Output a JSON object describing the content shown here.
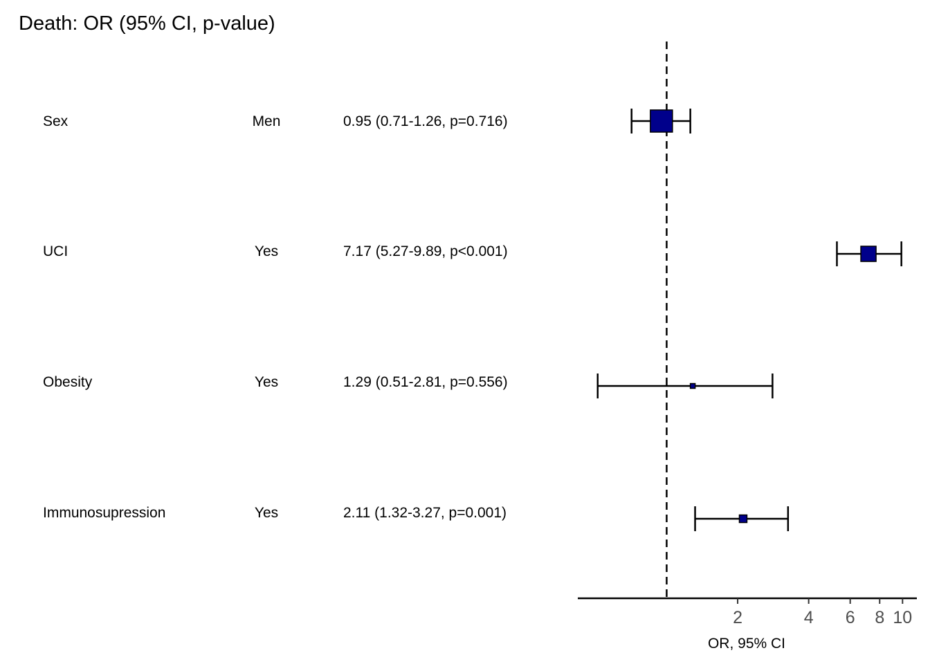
{
  "title": "Death: OR (95% CI, p-value)",
  "rows": [
    {
      "variable": "Sex",
      "level": "Men",
      "ci_text": "0.95 (0.71-1.26, p=0.716)"
    },
    {
      "variable": "UCI",
      "level": "Yes",
      "ci_text": "7.17 (5.27-9.89, p<0.001)"
    },
    {
      "variable": "Obesity",
      "level": "Yes",
      "ci_text": "1.29 (0.51-2.81, p=0.556)"
    },
    {
      "variable": "Immunosupression",
      "level": "Yes",
      "ci_text": "2.11 (1.32-3.27, p=0.001)"
    }
  ],
  "chart_data": {
    "type": "scatter",
    "title": "Death: OR (95% CI, p-value)",
    "xlabel": "OR, 95% CI",
    "ylabel": "",
    "xscale": "log",
    "xlim": [
      0.42,
      11.5
    ],
    "reference_line": 1,
    "x_ticks": [
      2,
      4,
      6,
      8,
      10
    ],
    "grid": false,
    "legend": "none",
    "categories": [
      "Sex",
      "UCI",
      "Obesity",
      "Immunosupression"
    ],
    "series": [
      {
        "values": [
          0.95,
          7.17,
          1.29,
          2.11
        ],
        "ci_low": [
          0.71,
          5.27,
          0.51,
          1.32
        ],
        "ci_high": [
          1.26,
          9.89,
          2.81,
          3.27
        ],
        "marker_color": "#00008b"
      }
    ]
  }
}
